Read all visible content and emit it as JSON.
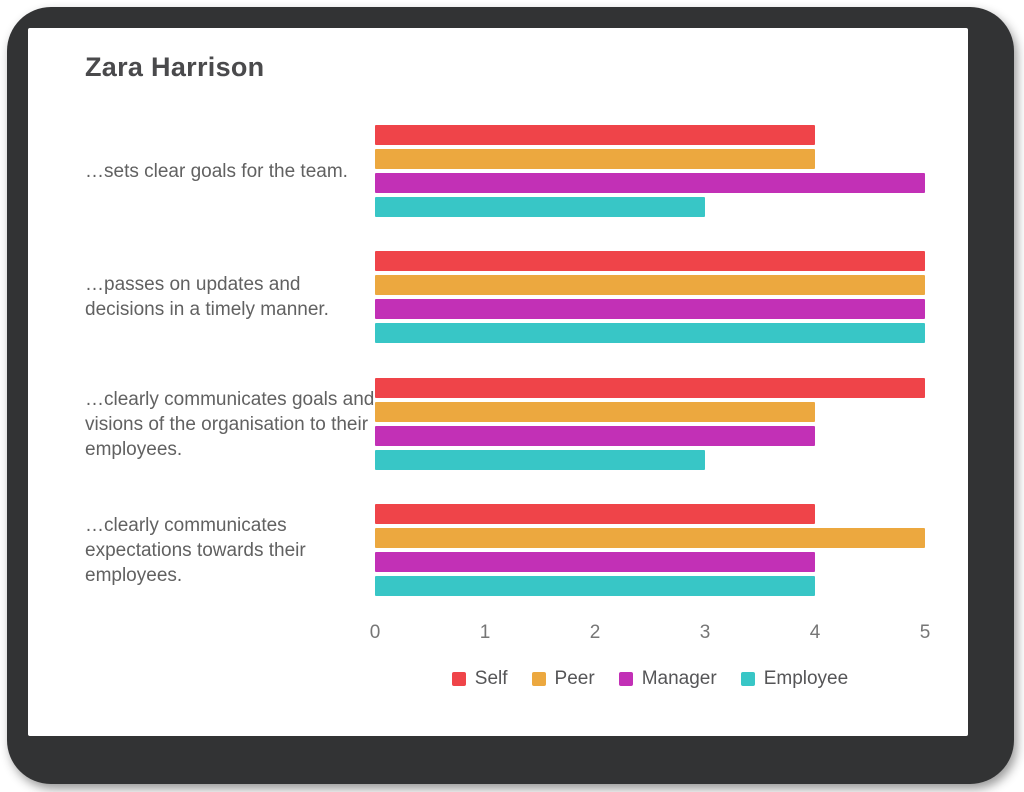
{
  "title": "Zara Harrison",
  "colors": {
    "frame": "#323334",
    "card": "#ffffff",
    "title_text": "#4a4a4c",
    "label_text": "#616161",
    "axis_text": "#767676",
    "legend_text": "#555557"
  },
  "chart_data": {
    "type": "bar",
    "orientation": "horizontal",
    "title": "Zara Harrison",
    "categories": [
      "…sets clear goals for the team.",
      "…passes on updates and decisions in a timely manner.",
      "…clearly communicates goals and visions of the organisation to their employees.",
      "…clearly communicates expectations towards their employees."
    ],
    "series": [
      {
        "name": "Self",
        "color": "#EF4449",
        "values": [
          4,
          5,
          5,
          4
        ]
      },
      {
        "name": "Peer",
        "color": "#ECA83F",
        "values": [
          4,
          5,
          4,
          5
        ]
      },
      {
        "name": "Manager",
        "color": "#C230B6",
        "values": [
          5,
          5,
          4,
          4
        ]
      },
      {
        "name": "Employee",
        "color": "#38C6C6",
        "values": [
          3,
          5,
          3,
          4
        ]
      }
    ],
    "xlim": [
      0,
      5
    ],
    "x_ticks": [
      0,
      1,
      2,
      3,
      4,
      5
    ],
    "grid": false,
    "legend_position": "bottom"
  }
}
